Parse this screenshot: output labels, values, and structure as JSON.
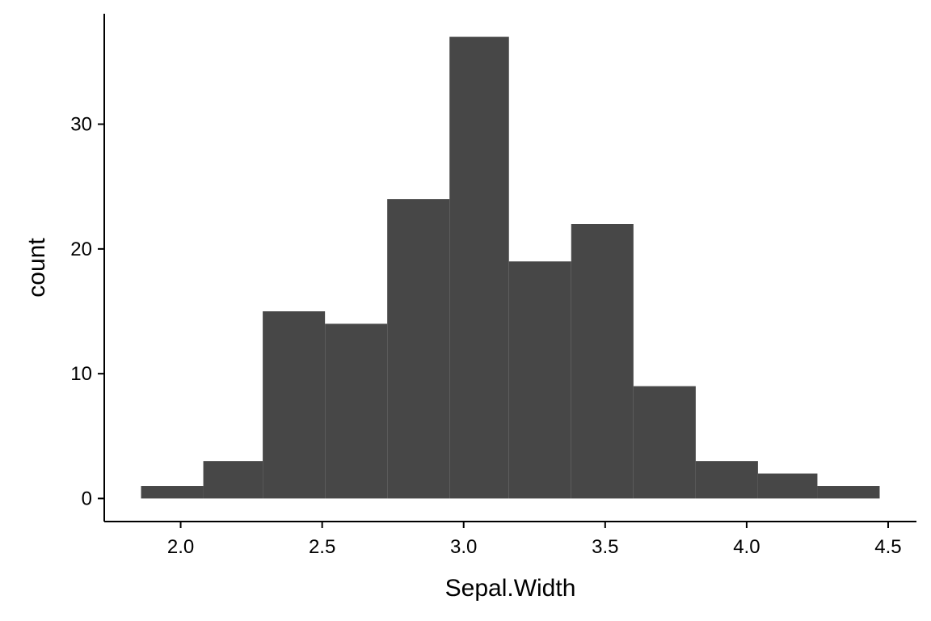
{
  "chart_data": {
    "type": "bar",
    "title": "",
    "xlabel": "Sepal.Width",
    "ylabel": "count",
    "bins": [
      {
        "x0": 1.86,
        "x1": 2.08,
        "count": 1
      },
      {
        "x0": 2.08,
        "x1": 2.29,
        "count": 3
      },
      {
        "x0": 2.29,
        "x1": 2.51,
        "count": 15
      },
      {
        "x0": 2.51,
        "x1": 2.73,
        "count": 14
      },
      {
        "x0": 2.73,
        "x1": 2.95,
        "count": 24
      },
      {
        "x0": 2.95,
        "x1": 3.16,
        "count": 37
      },
      {
        "x0": 3.16,
        "x1": 3.38,
        "count": 19
      },
      {
        "x0": 3.38,
        "x1": 3.6,
        "count": 22
      },
      {
        "x0": 3.6,
        "x1": 3.82,
        "count": 9
      },
      {
        "x0": 3.82,
        "x1": 4.04,
        "count": 3
      },
      {
        "x0": 4.04,
        "x1": 4.25,
        "count": 2
      },
      {
        "x0": 4.25,
        "x1": 4.47,
        "count": 1
      }
    ],
    "xlim": [
      1.73,
      4.6
    ],
    "ylim": [
      -1.85,
      38.85
    ],
    "xticks": [
      {
        "value": 2.0,
        "label": "2.0"
      },
      {
        "value": 2.5,
        "label": "2.5"
      },
      {
        "value": 3.0,
        "label": "3.0"
      },
      {
        "value": 3.5,
        "label": "3.5"
      },
      {
        "value": 4.0,
        "label": "4.0"
      },
      {
        "value": 4.5,
        "label": "4.5"
      }
    ],
    "yticks": [
      {
        "value": 0,
        "label": "0"
      },
      {
        "value": 10,
        "label": "10"
      },
      {
        "value": 20,
        "label": "20"
      },
      {
        "value": 30,
        "label": "30"
      }
    ],
    "bar_color": "#474747",
    "grid": false,
    "legend": "none"
  }
}
